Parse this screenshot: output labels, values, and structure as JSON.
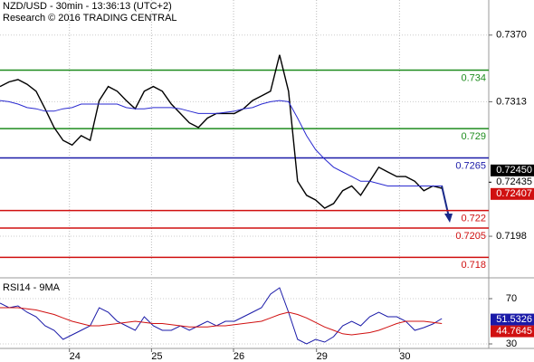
{
  "chart_data": [
    {
      "type": "line",
      "title": "NZD/USD - 30min - 13:36:13 (UTC+2)",
      "subtitle": "Research © 2016 TRADING CENTRAL",
      "ylim": [
        0.7164,
        0.74
      ],
      "xlim": [
        0,
        54.2
      ],
      "yticks": [
        {
          "value": 0.737,
          "label": "0.7370"
        },
        {
          "value": 0.7313,
          "label": "0.7313"
        },
        {
          "value": 0.7198,
          "label": "0.7198"
        }
      ],
      "grid": true,
      "series": [
        {
          "color": "#000000",
          "values": [
            0.7326,
            0.733,
            0.7332,
            0.7328,
            0.7322,
            0.7307,
            0.7291,
            0.728,
            0.7276,
            0.7284,
            0.728,
            0.7314,
            0.7326,
            0.7322,
            0.7314,
            0.7307,
            0.7322,
            0.7326,
            0.7322,
            0.7311,
            0.7303,
            0.7295,
            0.7291,
            0.7299,
            0.7303,
            0.7303,
            0.7303,
            0.7307,
            0.7314,
            0.7318,
            0.7322,
            0.7353,
            0.7322,
            0.7245,
            0.7233,
            0.7229,
            0.7222,
            0.7226,
            0.7237,
            0.7241,
            0.7233,
            0.7245,
            0.7257,
            0.7253,
            0.7249,
            0.7249,
            0.7245,
            0.7237,
            0.7241,
            0.7239
          ]
        },
        {
          "color": "#2a2ad0",
          "values": [
            0.7314,
            0.7313,
            0.7311,
            0.7308,
            0.7307,
            0.7305,
            0.7305,
            0.7307,
            0.7308,
            0.7311,
            0.7311,
            0.7311,
            0.7311,
            0.7311,
            0.7308,
            0.7307,
            0.7307,
            0.7308,
            0.7308,
            0.7308,
            0.7307,
            0.7305,
            0.7303,
            0.7303,
            0.7303,
            0.7304,
            0.7305,
            0.7307,
            0.7308,
            0.7311,
            0.7313,
            0.7314,
            0.7313,
            0.7299,
            0.7284,
            0.7272,
            0.7264,
            0.7257,
            0.7253,
            0.7249,
            0.7245,
            0.7245,
            0.7243,
            0.7241,
            0.7241,
            0.7241,
            0.7241,
            0.7241,
            0.7241,
            0.7241
          ]
        }
      ],
      "levels": [
        {
          "value": 0.734,
          "color": "#1e8c1e"
        },
        {
          "value": 0.729,
          "color": "#1e8c1e"
        },
        {
          "value": 0.7265,
          "color": "#1a1aa8"
        },
        {
          "value": 0.722,
          "color": "#d01010"
        },
        {
          "value": 0.7205,
          "color": "#d01010"
        },
        {
          "value": 0.718,
          "color": "#d01010"
        }
      ],
      "price_labels": [
        {
          "value": 0.7245,
          "label": "0.72450",
          "color": "#000000"
        },
        {
          "value": 0.72435,
          "label": "0.72435"
        },
        {
          "value": 0.72407,
          "label": "0.72407",
          "color": "#d01010"
        }
      ]
    },
    {
      "type": "line",
      "title": "RSI14 - 9MA",
      "ylim": [
        26,
        86
      ],
      "xlim": [
        0,
        54.2
      ],
      "yticks": [
        70,
        30
      ],
      "xticks": [
        {
          "value": 7.7,
          "label": "24"
        },
        {
          "value": 16.8,
          "label": "25"
        },
        {
          "value": 25.9,
          "label": "26"
        },
        {
          "value": 35.1,
          "label": "29"
        },
        {
          "value": 44.3,
          "label": "30"
        }
      ],
      "series": [
        {
          "color": "#1a1aa8",
          "values": [
            66,
            62,
            63.6,
            58,
            54,
            46,
            42,
            34,
            38,
            42,
            46,
            62,
            58,
            50,
            46,
            42,
            54,
            46,
            42,
            42,
            46,
            42,
            46,
            50,
            46,
            50,
            50,
            54,
            58,
            62,
            74,
            79.6,
            58,
            34,
            30,
            34,
            31.6,
            36.4,
            46,
            50,
            46,
            54,
            58,
            54,
            54,
            50,
            42,
            44.4,
            47.6,
            52.4
          ]
        },
        {
          "color": "#d01010",
          "values": [
            62,
            62,
            62,
            61,
            60,
            58,
            56,
            53,
            50,
            48,
            46,
            46,
            47,
            48,
            49,
            50,
            49,
            48,
            48,
            47,
            46,
            45,
            45,
            45,
            46,
            46,
            47,
            48,
            49,
            50,
            53,
            56,
            58,
            56,
            53,
            49,
            45,
            42,
            39,
            38,
            39,
            40,
            42,
            45,
            48,
            50,
            50,
            50,
            49,
            48
          ]
        }
      ],
      "price_labels": [
        {
          "value": 51.5326,
          "label": "51.5326",
          "color": "#1a1aa8"
        },
        {
          "value": 44.7645,
          "label": "44.7645",
          "color": "#d01010"
        }
      ]
    }
  ]
}
